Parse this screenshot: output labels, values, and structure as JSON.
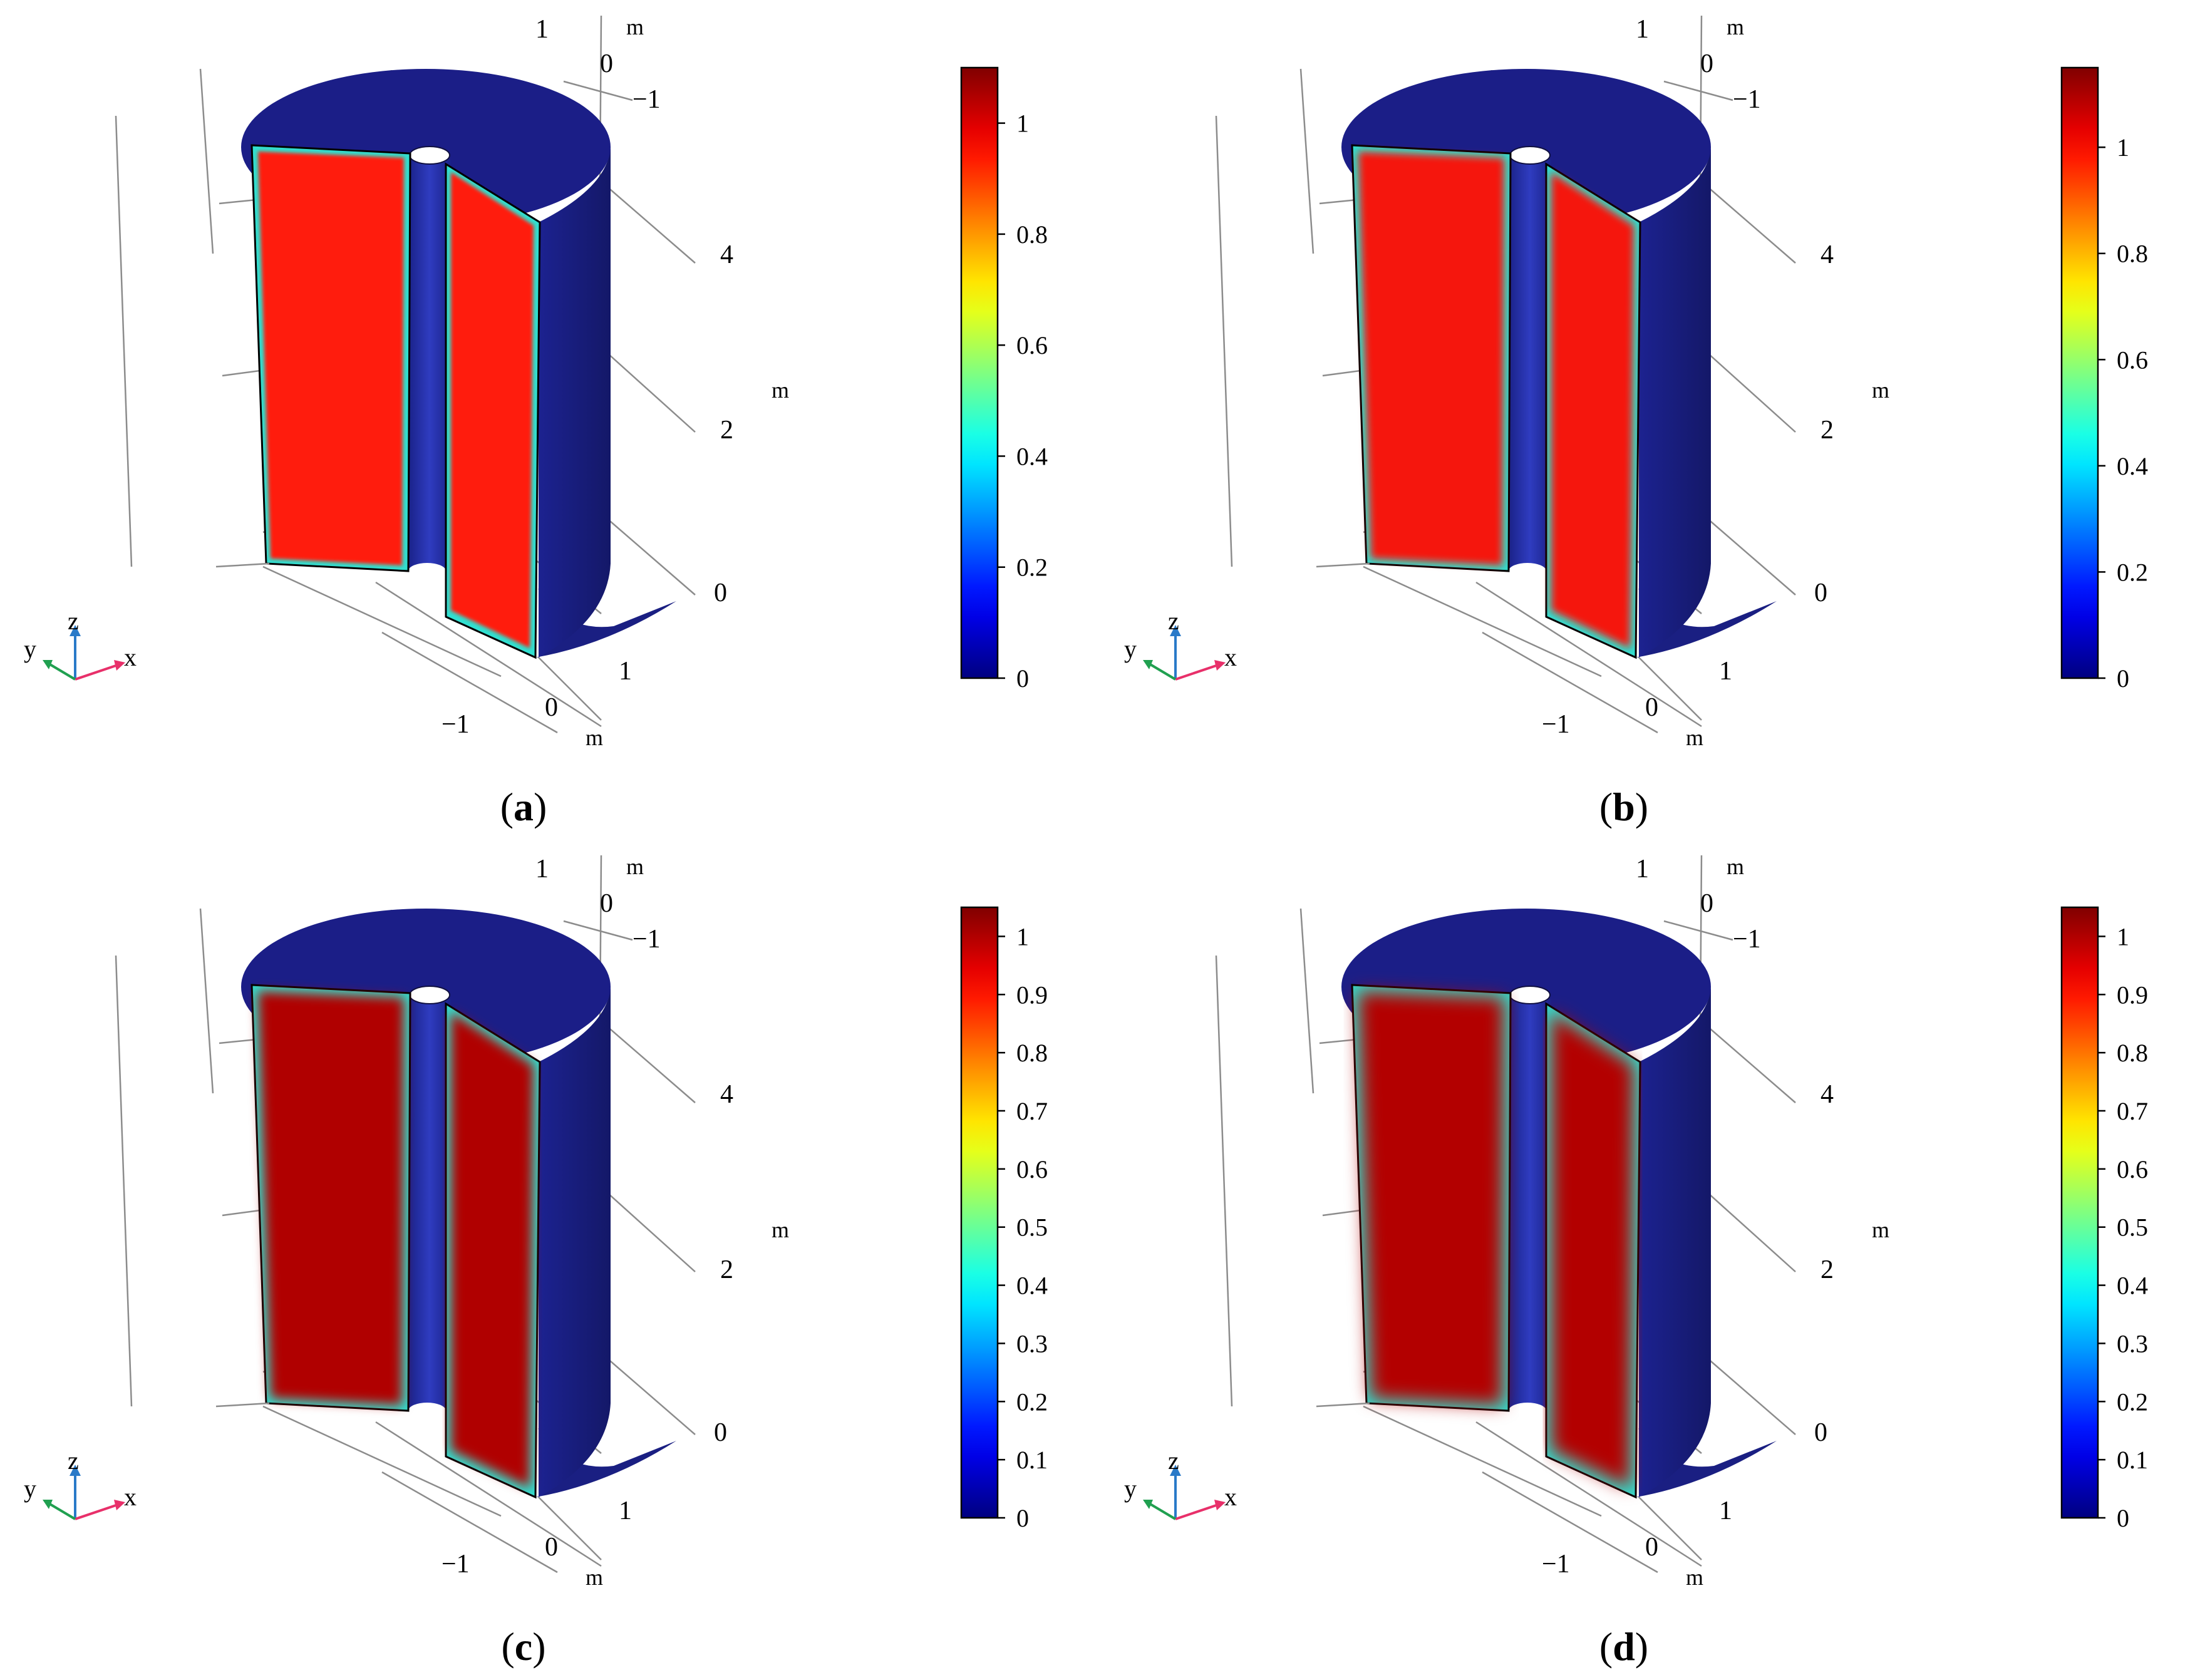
{
  "panels": [
    {
      "id": "a",
      "caption": "(a)",
      "axis_ticks": {
        "top_y": [
          "1",
          "0",
          "−1"
        ],
        "top_unit": "m",
        "z": [
          "4",
          "2",
          "0"
        ],
        "z_unit": "m",
        "bottom_x": [
          "1",
          "0",
          "−1"
        ],
        "bottom_unit": "m"
      },
      "colorbar": {
        "ticks": [
          "1",
          "0.8",
          "0.6",
          "0.4",
          "0.2",
          "0"
        ],
        "tick_values": [
          1,
          0.8,
          0.6,
          0.4,
          0.2,
          0
        ],
        "min": 0,
        "max": 1.1
      },
      "field_color": "#ff1a0a",
      "edge_blur": 3,
      "triad": {
        "x": "x",
        "y": "y",
        "z": "z"
      }
    },
    {
      "id": "b",
      "caption": "(b)",
      "axis_ticks": {
        "top_y": [
          "1",
          "0",
          "−1"
        ],
        "top_unit": "m",
        "z": [
          "4",
          "2",
          "0"
        ],
        "z_unit": "m",
        "bottom_x": [
          "1",
          "0",
          "−1"
        ],
        "bottom_unit": "m"
      },
      "colorbar": {
        "ticks": [
          "1",
          "0.8",
          "0.6",
          "0.4",
          "0.2",
          "0"
        ],
        "tick_values": [
          1,
          0.8,
          0.6,
          0.4,
          0.2,
          0
        ],
        "min": 0,
        "max": 1.15
      },
      "field_color": "#f5180c",
      "edge_blur": 6,
      "triad": {
        "x": "x",
        "y": "y",
        "z": "z"
      }
    },
    {
      "id": "c",
      "caption": "(c)",
      "axis_ticks": {
        "top_y": [
          "1",
          "0",
          "−1"
        ],
        "top_unit": "m",
        "z": [
          "4",
          "2",
          "0"
        ],
        "z_unit": "m",
        "bottom_x": [
          "1",
          "0",
          "−1"
        ],
        "bottom_unit": "m"
      },
      "colorbar": {
        "ticks": [
          "1",
          "0.9",
          "0.8",
          "0.7",
          "0.6",
          "0.5",
          "0.4",
          "0.3",
          "0.2",
          "0.1",
          "0"
        ],
        "tick_values": [
          1,
          0.9,
          0.8,
          0.7,
          0.6,
          0.5,
          0.4,
          0.3,
          0.2,
          0.1,
          0
        ],
        "min": 0,
        "max": 1.05
      },
      "field_color": "#b00000",
      "edge_blur": 9,
      "triad": {
        "x": "x",
        "y": "y",
        "z": "z"
      }
    },
    {
      "id": "d",
      "caption": "(d)",
      "axis_ticks": {
        "top_y": [
          "1",
          "0",
          "−1"
        ],
        "top_unit": "m",
        "z": [
          "4",
          "2",
          "0"
        ],
        "z_unit": "m",
        "bottom_x": [
          "1",
          "0",
          "−1"
        ],
        "bottom_unit": "m"
      },
      "colorbar": {
        "ticks": [
          "1",
          "0.9",
          "0.8",
          "0.7",
          "0.6",
          "0.5",
          "0.4",
          "0.3",
          "0.2",
          "0.1",
          "0"
        ],
        "tick_values": [
          1,
          0.9,
          0.8,
          0.7,
          0.6,
          0.5,
          0.4,
          0.3,
          0.2,
          0.1,
          0
        ],
        "min": 0,
        "max": 1.05
      },
      "field_color": "#b30000",
      "edge_blur": 14,
      "triad": {
        "x": "x",
        "y": "y",
        "z": "z"
      }
    }
  ],
  "colors": {
    "cylinder_dark": "#1a1f82",
    "cylinder_top": "#1b1e87",
    "inner_hole": "#1f2ba0",
    "edge_cyan": "#30e0d0",
    "axis_line": "#8c8c8c",
    "triad_x": "#e8306a",
    "triad_y": "#20a050",
    "triad_z": "#2a7ac8"
  }
}
